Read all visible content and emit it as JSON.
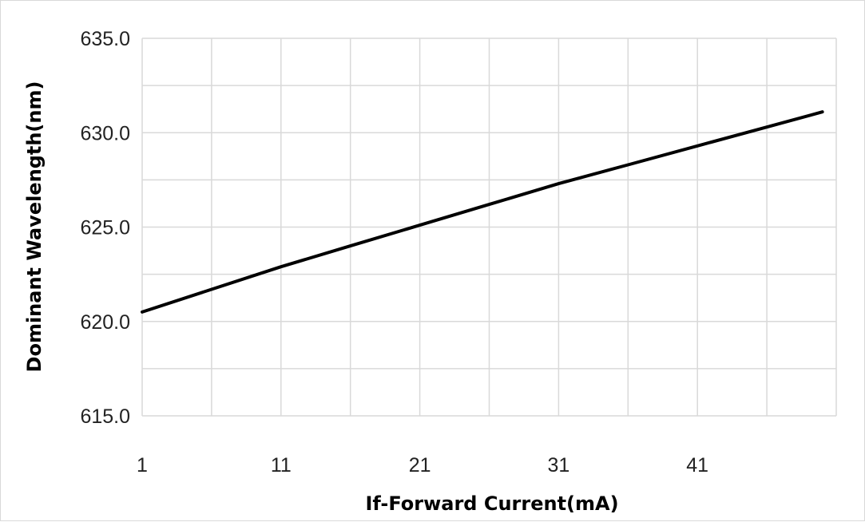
{
  "chart_data": {
    "type": "line",
    "title": "",
    "xlabel": "If-Forward Current(mA)",
    "ylabel": "Dominant  Wavelength(nm)",
    "xlim": [
      1,
      51
    ],
    "ylim": [
      615.0,
      635.0
    ],
    "x_ticks": [
      "1",
      "11",
      "21",
      "31",
      "41"
    ],
    "y_ticks": [
      "615.0",
      "620.0",
      "625.0",
      "630.0",
      "635.0"
    ],
    "grid": true,
    "legend": "none",
    "series": [
      {
        "x": [
          1,
          6,
          11,
          16,
          21,
          26,
          31,
          36,
          41,
          46,
          50
        ],
        "y": [
          620.5,
          621.7,
          622.9,
          624.0,
          625.1,
          626.2,
          627.3,
          628.3,
          629.3,
          630.3,
          631.1
        ]
      }
    ],
    "colors": {
      "line": "#000000",
      "grid": "#d9d9d9"
    }
  }
}
